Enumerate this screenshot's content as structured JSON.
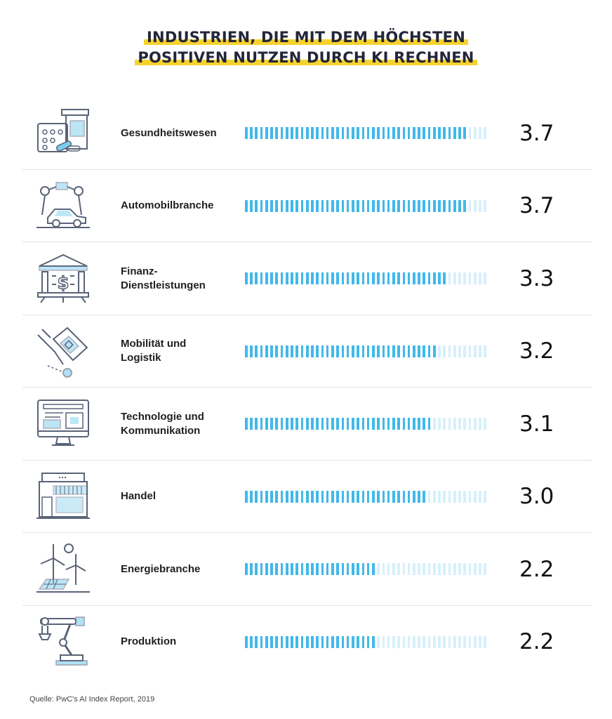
{
  "title": {
    "line1": "INDUSTRIEN, DIE MIT DEM HÖCHSTEN",
    "line2": "POSITIVEN NUTZEN DURCH KI RECHNEN"
  },
  "source": "Quelle: PwC's AI Index Report, 2019",
  "colors": {
    "bar_filled": "#41b8ea",
    "bar_empty": "#d7f0fb",
    "highlight": "#f6d22e",
    "icon_stroke": "#5a6378",
    "icon_accent": "#7ccdee"
  },
  "chart_data": {
    "type": "bar",
    "orientation": "horizontal",
    "title": "INDUSTRIEN, DIE MIT DEM HÖCHSTEN POSITIVEN NUTZEN DURCH KI RECHNEN",
    "xlim": [
      0,
      4
    ],
    "categories": [
      "Gesundheitswesen",
      "Automobilbranche",
      "Finanz-\nDienstleistungen",
      "Mobilität und\nLogistik",
      "Technologie und\nKommunikation",
      "Handel",
      "Energiebranche",
      "Produktion"
    ],
    "values": [
      3.7,
      3.7,
      3.3,
      3.2,
      3.1,
      3.0,
      2.2,
      2.2
    ],
    "value_labels": [
      "3.7",
      "3.7",
      "3.3",
      "3.2",
      "3.1",
      "3.0",
      "2.2",
      "2.2"
    ],
    "icons": [
      "healthcare-icon",
      "automotive-icon",
      "finance-bank-icon",
      "logistics-icon",
      "technology-monitor-icon",
      "retail-store-icon",
      "energy-wind-solar-icon",
      "manufacturing-robot-arm-icon"
    ]
  }
}
